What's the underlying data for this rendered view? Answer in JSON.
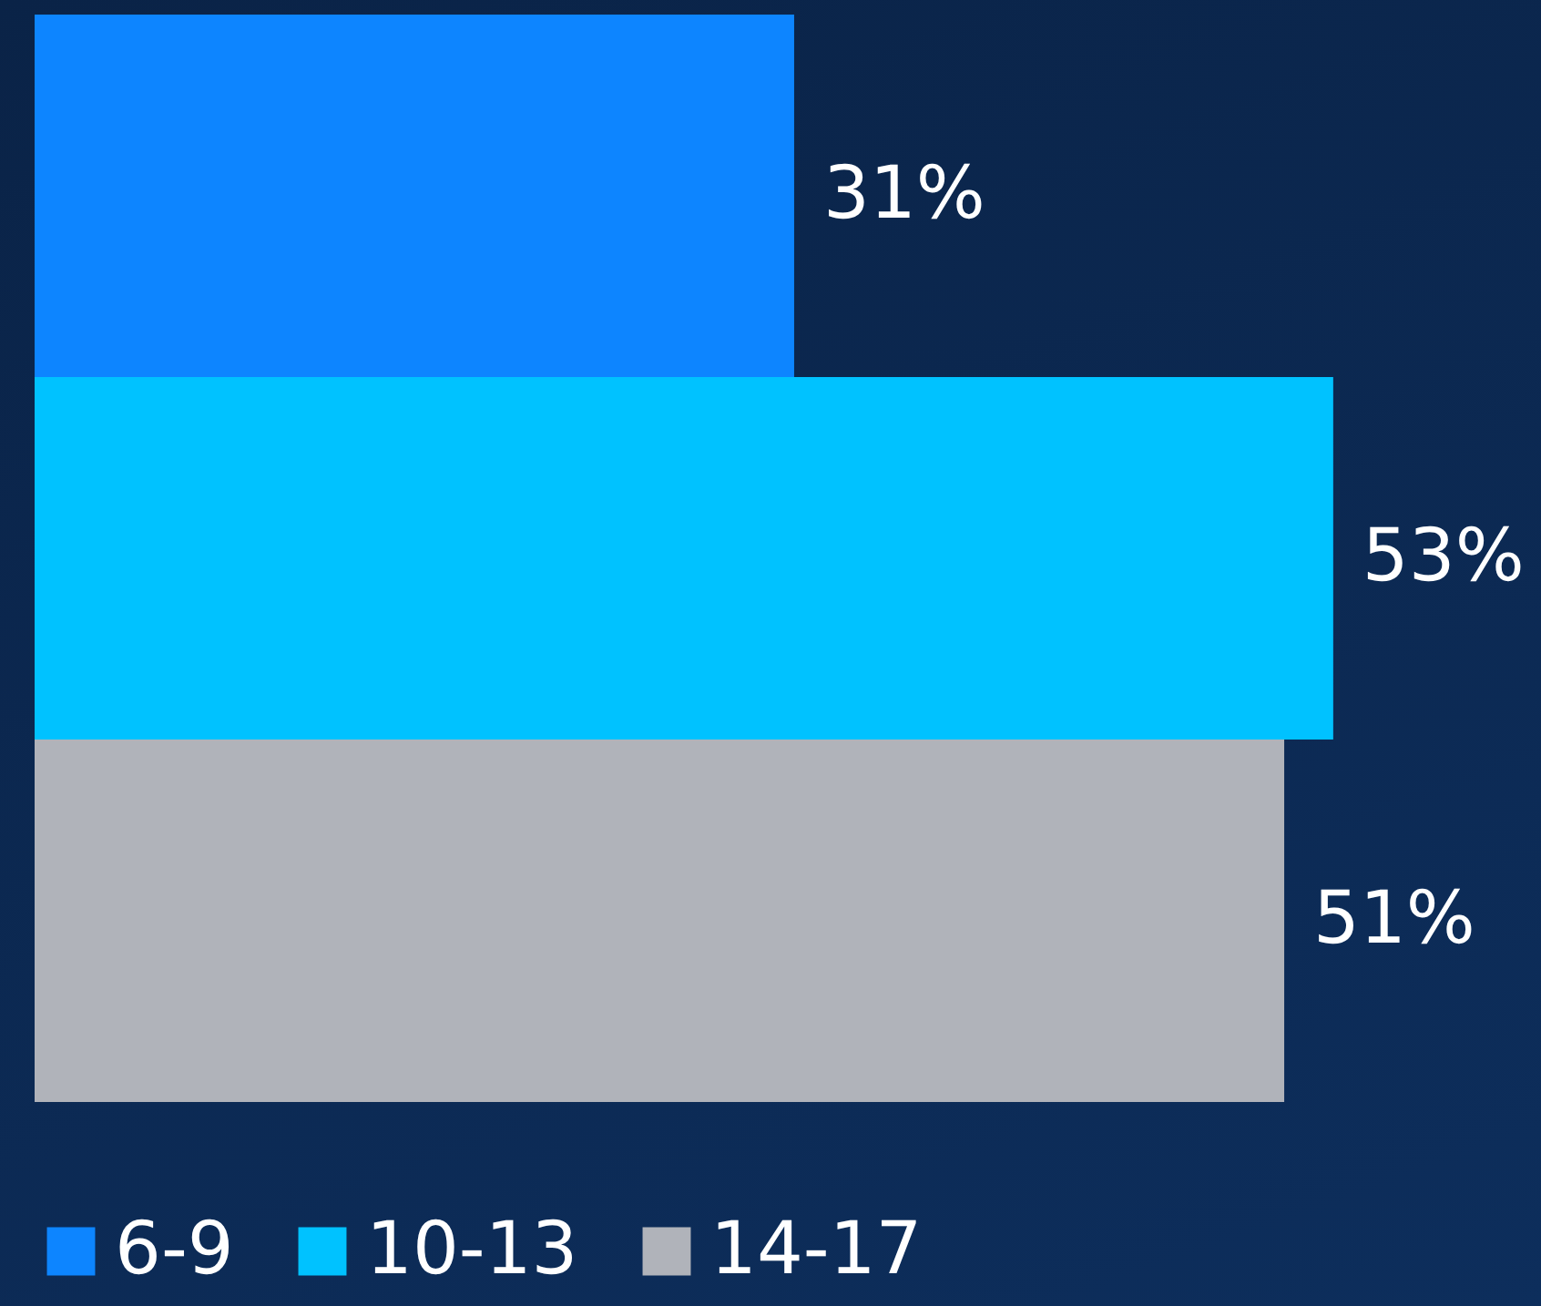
{
  "chart_data": {
    "type": "bar",
    "orientation": "horizontal",
    "categories": [
      null
    ],
    "legend": "bottom",
    "series": [
      {
        "name": "6-9",
        "color": "#0d85ff",
        "values": [
          31
        ],
        "value_labels": [
          "31%"
        ]
      },
      {
        "name": "10-13",
        "color": "#00c2ff",
        "values": [
          53
        ],
        "value_labels": [
          "53%"
        ]
      },
      {
        "name": "14-17",
        "color": "#b0b3ba",
        "values": [
          51
        ],
        "value_labels": [
          "51%"
        ]
      }
    ]
  }
}
